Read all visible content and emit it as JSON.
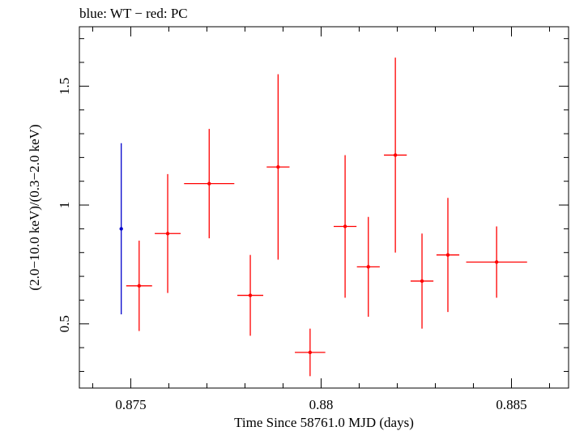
{
  "chart_data": {
    "type": "scatter",
    "title": "blue: WT − red: PC",
    "xlabel": "Time Since 58761.0 MJD (days)",
    "ylabel": "(2.0−10.0 keV)/(0.3−2.0 keV)",
    "xlim": [
      0.87365,
      0.8865
    ],
    "ylim": [
      0.23,
      1.75
    ],
    "x_ticks": [
      0.875,
      0.88,
      0.885
    ],
    "x_tick_labels": [
      "0.875",
      "0.88",
      "0.885"
    ],
    "y_ticks": [
      0.5,
      1.0,
      1.5
    ],
    "y_tick_labels": [
      "0.5",
      "1",
      "1.5"
    ],
    "grid": false,
    "series": [
      {
        "name": "WT",
        "color": "#0000cc",
        "points": [
          {
            "x": 0.87475,
            "xerr": 0.0,
            "y": 0.9,
            "yerr_lo": 0.36,
            "yerr_hi": 0.36
          }
        ]
      },
      {
        "name": "PC",
        "color": "#ff0000",
        "points": [
          {
            "x": 0.87522,
            "xerr": 0.00034,
            "y": 0.66,
            "yerr_lo": 0.19,
            "yerr_hi": 0.19
          },
          {
            "x": 0.87597,
            "xerr": 0.00034,
            "y": 0.88,
            "yerr_lo": 0.25,
            "yerr_hi": 0.25
          },
          {
            "x": 0.87706,
            "xerr": 0.00066,
            "y": 1.09,
            "yerr_lo": 0.23,
            "yerr_hi": 0.23
          },
          {
            "x": 0.87814,
            "xerr": 0.00034,
            "y": 0.62,
            "yerr_lo": 0.17,
            "yerr_hi": 0.17
          },
          {
            "x": 0.87887,
            "xerr": 0.0003,
            "y": 1.16,
            "yerr_lo": 0.39,
            "yerr_hi": 0.39
          },
          {
            "x": 0.87971,
            "xerr": 0.0004,
            "y": 0.38,
            "yerr_lo": 0.1,
            "yerr_hi": 0.1
          },
          {
            "x": 0.88063,
            "xerr": 0.0003,
            "y": 0.91,
            "yerr_lo": 0.3,
            "yerr_hi": 0.3
          },
          {
            "x": 0.88124,
            "xerr": 0.0003,
            "y": 0.74,
            "yerr_lo": 0.21,
            "yerr_hi": 0.21
          },
          {
            "x": 0.88195,
            "xerr": 0.0003,
            "y": 1.21,
            "yerr_lo": 0.41,
            "yerr_hi": 0.41
          },
          {
            "x": 0.88265,
            "xerr": 0.0003,
            "y": 0.68,
            "yerr_lo": 0.2,
            "yerr_hi": 0.2
          },
          {
            "x": 0.88333,
            "xerr": 0.0003,
            "y": 0.79,
            "yerr_lo": 0.24,
            "yerr_hi": 0.24
          },
          {
            "x": 0.88461,
            "xerr": 0.0008,
            "y": 0.76,
            "yerr_lo": 0.15,
            "yerr_hi": 0.15
          }
        ]
      }
    ]
  }
}
